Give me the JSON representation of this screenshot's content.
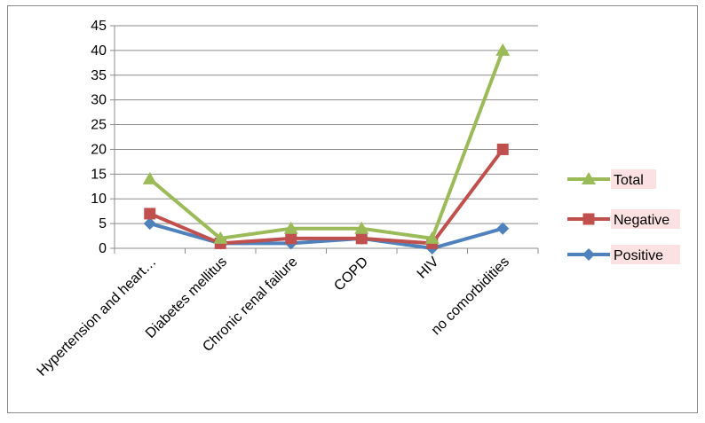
{
  "chart_data": {
    "type": "line",
    "categories": [
      "Hypertension and heart…",
      "Diabetes mellitus",
      "Chronic renal failure",
      "COPD",
      "HIV",
      "no comorbidities"
    ],
    "series": [
      {
        "name": "Total",
        "color": "#9bbb59",
        "marker": "triangle",
        "values": [
          14,
          2,
          4,
          4,
          2,
          40
        ]
      },
      {
        "name": "Negative",
        "color": "#c0504d",
        "marker": "square",
        "values": [
          7,
          1,
          2,
          2,
          1,
          20
        ]
      },
      {
        "name": "Positive",
        "color": "#4f81bd",
        "marker": "diamond",
        "values": [
          5,
          1,
          1,
          2,
          0,
          4
        ]
      }
    ],
    "y_ticks": [
      "0",
      "5",
      "10",
      "15",
      "20",
      "25",
      "30",
      "35",
      "40",
      "45"
    ],
    "ylim": [
      0,
      45
    ],
    "grid": true,
    "legend_position": "right",
    "legend_highlight": "#fbe1e1"
  }
}
